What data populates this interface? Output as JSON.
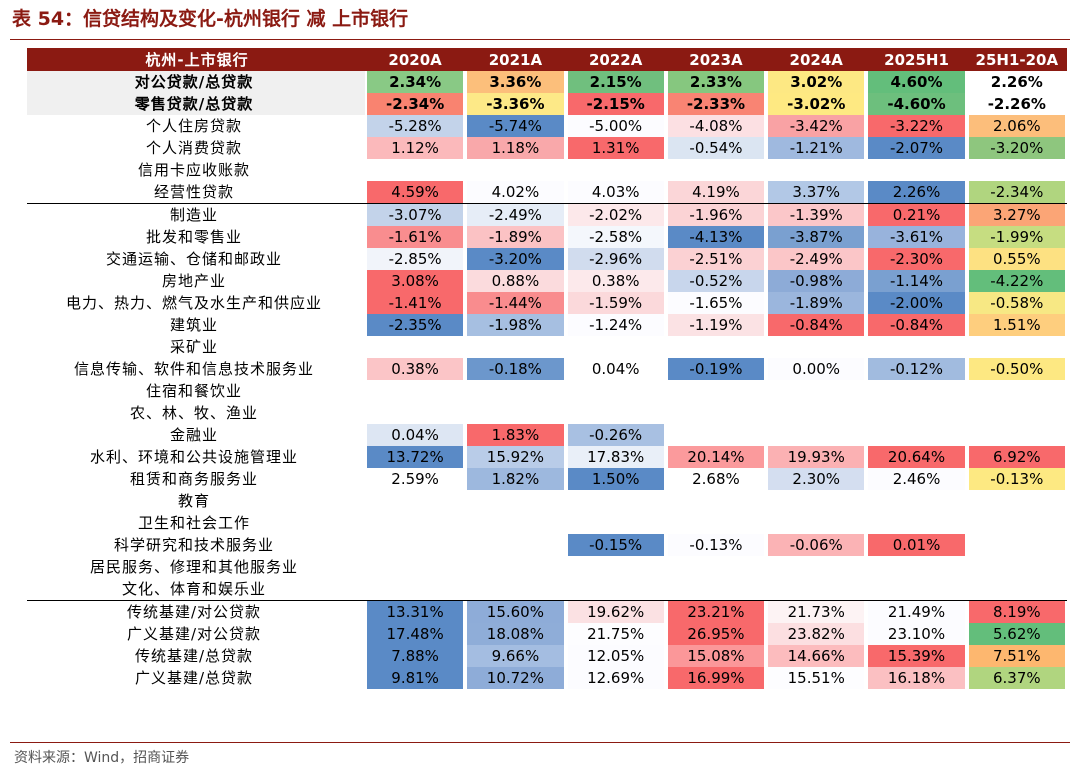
{
  "title": "表 54：信贷结构及变化-杭州银行 减 上市银行",
  "source": "资料来源：Wind，招商证券",
  "columns": [
    "杭州-上市银行",
    "2020A",
    "2021A",
    "2022A",
    "2023A",
    "2024A",
    "2025H1",
    "25H1-20A"
  ],
  "colors": {
    "header": "#8b1a12",
    "red": "#f8696b",
    "blue": "#5a8ac6",
    "green": "#63be7b",
    "yellow": "#ffeb84",
    "orange": "#fdb96f"
  },
  "rows": [
    {
      "label": "对公贷款/总贷款",
      "bold": true,
      "shade": true,
      "values": [
        "2.34%",
        "3.36%",
        "2.15%",
        "2.33%",
        "3.02%",
        "4.60%",
        "2.26%"
      ],
      "colors": [
        "#89c985",
        "#fcbf7b",
        "#70bf7e",
        "#86c77f",
        "#fde883",
        "#63be7b",
        "#ffffff"
      ]
    },
    {
      "label": "零售贷款/总贷款",
      "bold": true,
      "shade": true,
      "values": [
        "-2.34%",
        "-3.36%",
        "-2.15%",
        "-2.33%",
        "-3.02%",
        "-4.60%",
        "-2.26%"
      ],
      "colors": [
        "#f98370",
        "#fde987",
        "#f8696b",
        "#f98473",
        "#fee982",
        "#6dbf7d",
        "#ffffff"
      ]
    },
    {
      "label": "个人住房贷款",
      "values": [
        "-5.28%",
        "-5.74%",
        "-5.00%",
        "-4.08%",
        "-3.42%",
        "-3.22%",
        "2.06%"
      ],
      "colors": [
        "#c3d3ea",
        "#5a8ac6",
        "#fcfcff",
        "#fce0e3",
        "#f9a2a4",
        "#f8696b",
        "#fcbe7b"
      ]
    },
    {
      "label": "个人消费贷款",
      "values": [
        "1.12%",
        "1.18%",
        "1.31%",
        "-0.54%",
        "-1.21%",
        "-2.07%",
        "-3.20%"
      ],
      "colors": [
        "#fbb9bb",
        "#f9a8aa",
        "#f8696b",
        "#dbe5f2",
        "#9fb9df",
        "#5a8ac6",
        "#8ec67e"
      ]
    },
    {
      "label": "信用卡应收账款",
      "values": [
        "",
        "",
        "",
        "",
        "",
        "",
        ""
      ],
      "colors": [
        "",
        "",
        "",
        "",
        "",
        "",
        ""
      ]
    },
    {
      "label": "经营性贷款",
      "values": [
        "4.59%",
        "4.02%",
        "4.03%",
        "4.19%",
        "3.37%",
        "2.26%",
        "-2.34%"
      ],
      "colors": [
        "#f8696b",
        "#fcfcff",
        "#fcfcff",
        "#fbd6d8",
        "#b2c8e6",
        "#5a8ac6",
        "#b0d57f"
      ]
    },
    {
      "label": "制造业",
      "sep": true,
      "values": [
        "-3.07%",
        "-2.49%",
        "-2.02%",
        "-1.96%",
        "-1.39%",
        "0.21%",
        "3.27%"
      ],
      "colors": [
        "#c3d3ea",
        "#e6edf7",
        "#fce8ea",
        "#fbd3d5",
        "#fbc7c9",
        "#f8696b",
        "#fba576"
      ]
    },
    {
      "label": "批发和零售业",
      "values": [
        "-1.61%",
        "-1.89%",
        "-2.58%",
        "-4.13%",
        "-3.87%",
        "-3.61%",
        "-1.99%"
      ],
      "colors": [
        "#f98d8f",
        "#fbc2c4",
        "#f4f7fc",
        "#5a8ac6",
        "#7aa0d0",
        "#98b3dc",
        "#c6dd81"
      ]
    },
    {
      "label": "交通运输、仓储和邮政业",
      "values": [
        "-2.85%",
        "-3.20%",
        "-2.96%",
        "-2.51%",
        "-2.49%",
        "-2.30%",
        "0.55%"
      ],
      "colors": [
        "#f1f4fa",
        "#5a8ac6",
        "#d1dcee",
        "#fbd1d3",
        "#fbc6c8",
        "#f8696b",
        "#fde182"
      ]
    },
    {
      "label": "房地产业",
      "values": [
        "3.08%",
        "0.88%",
        "0.38%",
        "-0.52%",
        "-0.98%",
        "-1.14%",
        "-4.22%"
      ],
      "colors": [
        "#f8696b",
        "#fbdbdd",
        "#fce9eb",
        "#c8d6ec",
        "#8dabd7",
        "#7aa0d0",
        "#63be7b"
      ]
    },
    {
      "label": "电力、热力、燃气及水生产和供应业",
      "values": [
        "-1.41%",
        "-1.44%",
        "-1.59%",
        "-1.65%",
        "-1.89%",
        "-2.00%",
        "-0.58%"
      ],
      "colors": [
        "#f8696b",
        "#f98c8e",
        "#fbd9db",
        "#fcfcff",
        "#9bb6dd",
        "#5a8ac6",
        "#f7e884"
      ]
    },
    {
      "label": "建筑业",
      "values": [
        "-2.35%",
        "-1.98%",
        "-1.24%",
        "-1.19%",
        "-0.84%",
        "-0.84%",
        "1.51%"
      ],
      "colors": [
        "#5a8ac6",
        "#a6bfe1",
        "#fcfcff",
        "#fbe2e4",
        "#f8696b",
        "#f8696b",
        "#fece7e"
      ]
    },
    {
      "label": "采矿业",
      "values": [
        "",
        "",
        "",
        "",
        "",
        "",
        ""
      ],
      "colors": [
        "",
        "",
        "",
        "",
        "",
        "",
        ""
      ]
    },
    {
      "label": "信息传输、软件和信息技术服务业",
      "values": [
        "0.38%",
        "-0.18%",
        "0.04%",
        "-0.19%",
        "0.00%",
        "-0.12%",
        "-0.50%"
      ],
      "colors": [
        "#fbc5c7",
        "#6c97cc",
        "#ffffff",
        "#5a8ac6",
        "#fcfcff",
        "#a1bbdf",
        "#fde882"
      ]
    },
    {
      "label": "住宿和餐饮业",
      "values": [
        "",
        "",
        "",
        "",
        "",
        "",
        ""
      ],
      "colors": [
        "",
        "",
        "",
        "",
        "",
        "",
        ""
      ]
    },
    {
      "label": "农、林、牧、渔业",
      "values": [
        "",
        "",
        "",
        "",
        "",
        "",
        ""
      ],
      "colors": [
        "",
        "",
        "",
        "",
        "",
        "",
        ""
      ]
    },
    {
      "label": "金融业",
      "values": [
        "0.04%",
        "1.83%",
        "-0.26%",
        "",
        "",
        "",
        ""
      ],
      "colors": [
        "#dde6f3",
        "#f8696b",
        "#a8c0e2",
        "",
        "",
        "",
        ""
      ]
    },
    {
      "label": "水利、环境和公共设施管理业",
      "values": [
        "13.72%",
        "15.92%",
        "17.83%",
        "20.14%",
        "19.93%",
        "20.64%",
        "6.92%"
      ],
      "colors": [
        "#5a8ac6",
        "#b9cce8",
        "#e9eff8",
        "#fb9a9c",
        "#fbb1b3",
        "#f8696b",
        "#f8696b"
      ]
    },
    {
      "label": "租赁和商务服务业",
      "values": [
        "2.59%",
        "1.82%",
        "1.50%",
        "2.68%",
        "2.30%",
        "2.46%",
        "-0.13%"
      ],
      "colors": [
        "#ffffff",
        "#9db8de",
        "#5a8ac6",
        "#ffffff",
        "#d4def0",
        "#fcfcff",
        "#fde982"
      ]
    },
    {
      "label": "教育",
      "values": [
        "",
        "",
        "",
        "",
        "",
        "",
        ""
      ],
      "colors": [
        "",
        "",
        "",
        "",
        "",
        "",
        ""
      ]
    },
    {
      "label": "卫生和社会工作",
      "values": [
        "",
        "",
        "",
        "",
        "",
        "",
        ""
      ],
      "colors": [
        "",
        "",
        "",
        "",
        "",
        "",
        ""
      ]
    },
    {
      "label": "科学研究和技术服务业",
      "values": [
        "",
        "",
        "-0.15%",
        "-0.13%",
        "-0.06%",
        "0.01%",
        ""
      ],
      "colors": [
        "",
        "",
        "#5a8ac6",
        "#fcfcff",
        "#fbb3b5",
        "#f8696b",
        ""
      ]
    },
    {
      "label": "居民服务、修理和其他服务业",
      "values": [
        "",
        "",
        "",
        "",
        "",
        "",
        ""
      ],
      "colors": [
        "",
        "",
        "",
        "",
        "",
        "",
        ""
      ]
    },
    {
      "label": "文化、体育和娱乐业",
      "values": [
        "",
        "",
        "",
        "",
        "",
        "",
        ""
      ],
      "colors": [
        "",
        "",
        "",
        "",
        "",
        "",
        ""
      ]
    },
    {
      "label": "传统基建/对公贷款",
      "sep": true,
      "values": [
        "13.31%",
        "15.60%",
        "19.62%",
        "23.21%",
        "21.73%",
        "21.49%",
        "8.19%"
      ],
      "colors": [
        "#5a8ac6",
        "#8eacd8",
        "#fbe1e3",
        "#f8696b",
        "#fdf3f4",
        "#fcfcff",
        "#f8696b"
      ]
    },
    {
      "label": "广义基建/对公贷款",
      "values": [
        "17.48%",
        "18.08%",
        "21.75%",
        "26.95%",
        "23.82%",
        "23.10%",
        "5.62%"
      ],
      "colors": [
        "#5a8ac6",
        "#8fadd8",
        "#fdfdff",
        "#f8696b",
        "#fcdfe1",
        "#fcfcff",
        "#63be7b"
      ]
    },
    {
      "label": "传统基建/总贷款",
      "values": [
        "7.88%",
        "9.66%",
        "12.05%",
        "15.08%",
        "14.66%",
        "15.39%",
        "7.51%"
      ],
      "colors": [
        "#5a8ac6",
        "#a4bde1",
        "#fcfcff",
        "#fb9799",
        "#fcbcbe",
        "#f8696b",
        "#fdb76f"
      ]
    },
    {
      "label": "广义基建/总贷款",
      "values": [
        "9.81%",
        "10.72%",
        "12.69%",
        "16.99%",
        "15.51%",
        "16.18%",
        "6.37%"
      ],
      "colors": [
        "#5a8ac6",
        "#8eacd8",
        "#fcfcff",
        "#f8696b",
        "#fdfdff",
        "#fbc0c2",
        "#b0d57f"
      ]
    }
  ]
}
